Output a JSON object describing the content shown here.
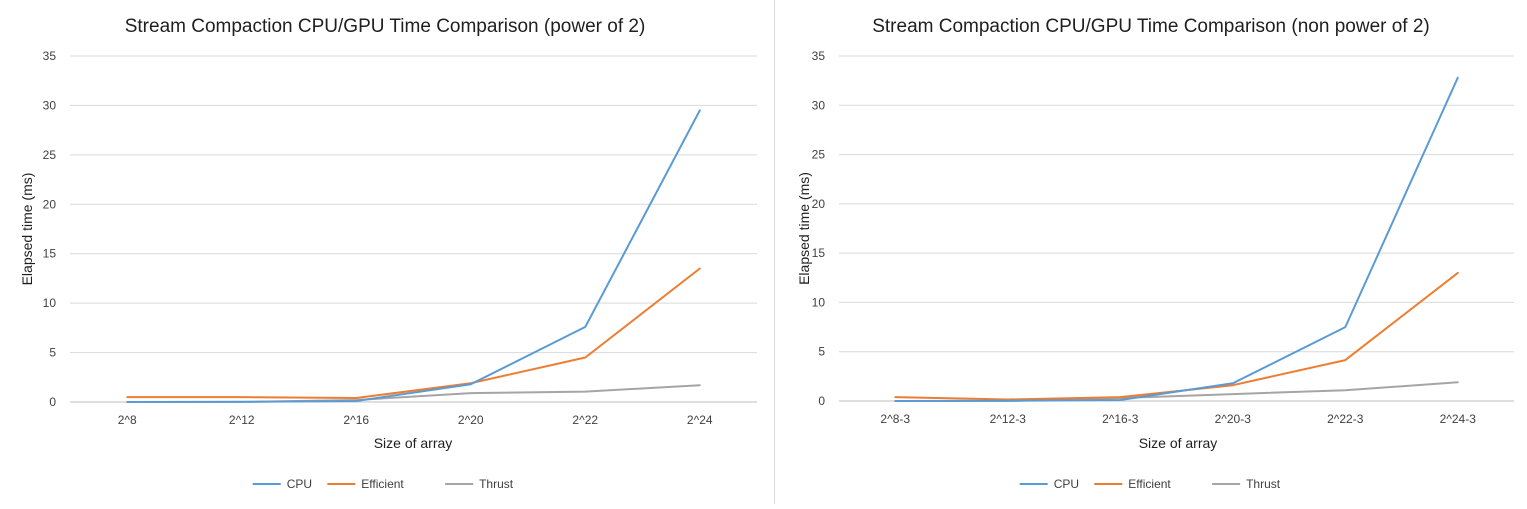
{
  "chart_data": [
    {
      "type": "line",
      "title": "Stream Compaction CPU/GPU Time Comparison (power of 2)",
      "xlabel": "Size of array",
      "ylabel": "Elapsed time (ms)",
      "ylim": [
        0,
        35
      ],
      "yticks": [
        0,
        5,
        10,
        15,
        20,
        25,
        30,
        35
      ],
      "grid": true,
      "legend_position": "bottom",
      "categories": [
        "2^8",
        "2^12",
        "2^16",
        "2^20",
        "2^22",
        "2^24"
      ],
      "series": [
        {
          "name": "CPU",
          "color": "#5b9bd5",
          "values": [
            0.0,
            0.02,
            0.1,
            1.8,
            7.6,
            29.5
          ]
        },
        {
          "name": "Efficient",
          "color": "#ed7d31",
          "values": [
            0.5,
            0.5,
            0.4,
            1.9,
            4.5,
            13.5
          ]
        },
        {
          "name": "Thrust",
          "color": "#a5a5a5",
          "values": [
            0.0,
            0.0,
            0.2,
            0.9,
            1.05,
            1.7
          ]
        }
      ]
    },
    {
      "type": "line",
      "title": "Stream Compaction CPU/GPU Time Comparison (non power of 2)",
      "xlabel": "Size of array",
      "ylabel": "Elapsed time (ms)",
      "ylim": [
        0,
        35
      ],
      "yticks": [
        0,
        5,
        10,
        15,
        20,
        25,
        30,
        35
      ],
      "grid": true,
      "legend_position": "bottom",
      "categories": [
        "2^8-3",
        "2^12-3",
        "2^16-3",
        "2^20-3",
        "2^22-3",
        "2^24-3"
      ],
      "series": [
        {
          "name": "CPU",
          "color": "#5b9bd5",
          "values": [
            0.0,
            0.02,
            0.1,
            1.8,
            7.5,
            32.8
          ]
        },
        {
          "name": "Efficient",
          "color": "#ed7d31",
          "values": [
            0.4,
            0.15,
            0.4,
            1.6,
            4.15,
            13.0
          ]
        },
        {
          "name": "Thrust",
          "color": "#a5a5a5",
          "values": [
            0.0,
            0.0,
            0.3,
            0.7,
            1.1,
            1.9
          ]
        }
      ]
    }
  ]
}
